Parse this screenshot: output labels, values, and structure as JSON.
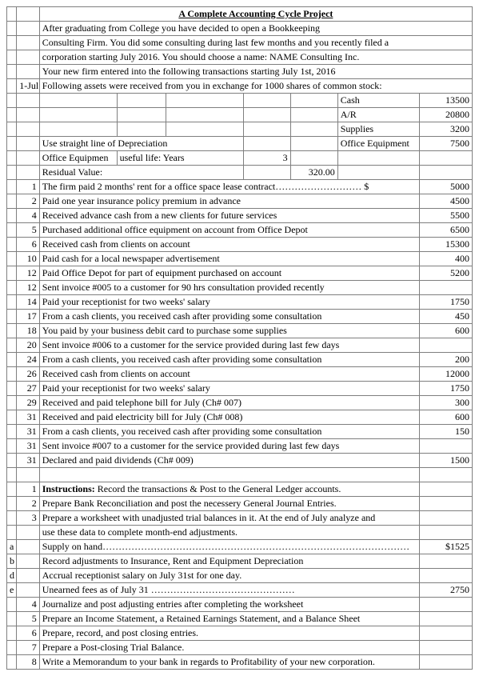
{
  "title": "A Complete Accounting Cycle Project",
  "intro": [
    "After graduating from College you have decided to open a Bookkeeping",
    "Consulting Firm. You did some consulting during last few months and you recently filed a",
    "corporation starting July 2016. You should choose a name: NAME Consulting Inc.",
    "Your new firm entered into the following transactions starting July 1st, 2016"
  ],
  "assets_line_pre": "1-Jul",
  "assets_line": "Following assets were received from you in exchange for 1000 shares of common stock:",
  "assets": [
    {
      "label": "Cash",
      "value": "13500"
    },
    {
      "label": "A/R",
      "value": "20800"
    },
    {
      "label": "Supplies",
      "value": "3200"
    },
    {
      "label": "Office Equipment",
      "value": "7500"
    }
  ],
  "depr_line": "Use straight line of Depreciation",
  "life_a": "Office Equipmen",
  "life_b": "useful life: Years",
  "life_val": "3",
  "resid_lbl": "Residual Value:",
  "resid_val": "320.00",
  "tx": [
    {
      "n": "1",
      "d": "The firm paid 2 months' rent for a office space lease contract………………………  $",
      "a": "5000"
    },
    {
      "n": "2",
      "d": "Paid one year insurance policy premium in advance",
      "a": "4500"
    },
    {
      "n": "4",
      "d": "Received advance cash from a new clients for future services",
      "a": "5500"
    },
    {
      "n": "5",
      "d": "Purchased additional office equipment on account from Office Depot",
      "a": "6500"
    },
    {
      "n": "6",
      "d": "Received cash from clients on account",
      "a": "15300"
    },
    {
      "n": "10",
      "d": "Paid cash for a local newspaper advertisement",
      "a": "400"
    },
    {
      "n": "12",
      "d": "Paid Office Depot for part of equipment purchased on account",
      "a": "5200"
    },
    {
      "n": "12",
      "d": "Sent invoice #005 to a customer for 90 hrs consultation provided recently",
      "a": ""
    },
    {
      "n": "14",
      "d": "Paid your receptionist for two weeks' salary",
      "a": "1750"
    },
    {
      "n": "17",
      "d": "From a cash clients, you received cash after providing some consultation",
      "a": "450"
    },
    {
      "n": "18",
      "d": "You paid by your business debit card to purchase some supplies",
      "a": "600"
    },
    {
      "n": "20",
      "d": "Sent invoice #006 to a customer for the service provided during last few days",
      "a": ""
    },
    {
      "n": "24",
      "d": "From a cash clients, you received cash after providing some consultation",
      "a": "200"
    },
    {
      "n": "26",
      "d": "Received cash from clients on account",
      "a": "12000"
    },
    {
      "n": "27",
      "d": "Paid your receptionist for two weeks' salary",
      "a": "1750"
    },
    {
      "n": "29",
      "d": "Received and paid telephone bill for July (Ch# 007)",
      "a": "300"
    },
    {
      "n": "31",
      "d": "Received and paid electricity bill for July (Ch# 008)",
      "a": "600"
    },
    {
      "n": "31",
      "d": "From a cash clients, you received cash after providing some consultation",
      "a": "150"
    },
    {
      "n": "31",
      "d": "Sent invoice #007 to a customer for the service provided during last few days",
      "a": ""
    },
    {
      "n": "31",
      "d": "Declared and paid dividends (Ch# 009)",
      "a": "1500"
    }
  ],
  "instr": [
    {
      "n": "1",
      "pre": "",
      "bold": "Instructions: ",
      "d": "Record the transactions & Post to the General Ledger accounts.",
      "a": ""
    },
    {
      "n": "2",
      "pre": "",
      "bold": "",
      "d": "Prepare Bank Reconciliation and post the necessery General Journal Entries.",
      "a": ""
    },
    {
      "n": "3",
      "pre": "",
      "bold": "",
      "d": "Prepare a worksheet with unadjusted trial balances in it. At the end of July analyze and",
      "a": ""
    },
    {
      "n": "",
      "pre": "",
      "bold": "",
      "d": "use these data to complete month-end adjustments.",
      "a": ""
    },
    {
      "n": "",
      "pre": "a",
      "bold": "",
      "d": "Supply on hand……………………………………………………………………………………",
      "a": "$1525"
    },
    {
      "n": "",
      "pre": "b",
      "bold": "",
      "d": "Record adjustments to Insurance, Rent and Equipment Depreciation",
      "a": ""
    },
    {
      "n": "",
      "pre": "d",
      "bold": "",
      "d": "Accrual receptionist salary on July 31st for one day.",
      "a": ""
    },
    {
      "n": "",
      "pre": "e",
      "bold": "",
      "d": "Unearned fees as of July 31 ………………………………………",
      "a": "2750"
    },
    {
      "n": "4",
      "pre": "",
      "bold": "",
      "d": "Journalize and post adjusting entries after completing the worksheet",
      "a": ""
    },
    {
      "n": "5",
      "pre": "",
      "bold": "",
      "d": "Prepare an Income Statement, a Retained Earnings Statement, and a Balance Sheet",
      "a": ""
    },
    {
      "n": "6",
      "pre": "",
      "bold": "",
      "d": "Prepare, record, and post closing entries.",
      "a": ""
    },
    {
      "n": "7",
      "pre": "",
      "bold": "",
      "d": "Prepare a Post-closing Trial Balance.",
      "a": ""
    },
    {
      "n": "8",
      "pre": "",
      "bold": "",
      "d": "Write a Memorandum to your bank in regards to Profitability of your new corporation.",
      "a": ""
    }
  ]
}
